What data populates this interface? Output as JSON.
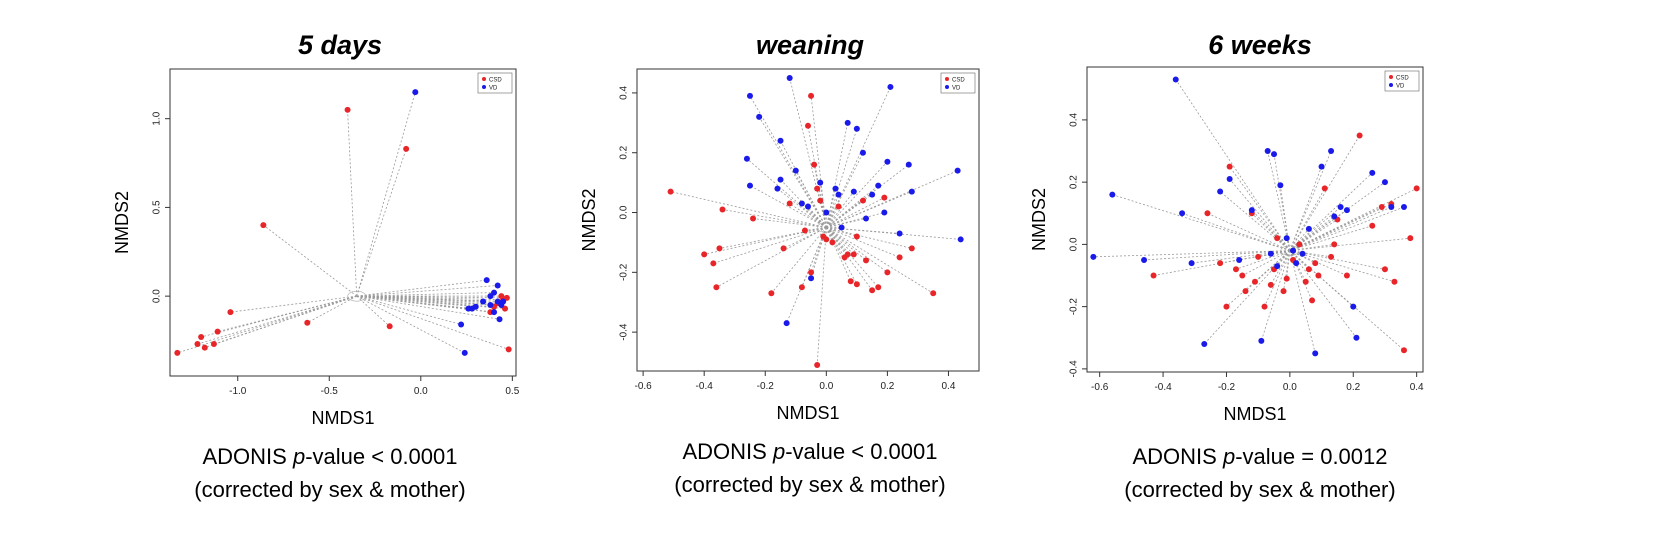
{
  "chart_data": [
    {
      "type": "scatter",
      "title": "5 days",
      "xlabel": "NMDS1",
      "ylabel": "NMDS2",
      "xlim": [
        -1.37,
        0.52
      ],
      "ylim": [
        -0.45,
        1.28
      ],
      "xticks": [
        -1.0,
        -0.5,
        0.0,
        0.5
      ],
      "yticks": [
        0.0,
        0.5,
        1.0
      ],
      "grid": false,
      "legend": {
        "position": "top-right",
        "entries": [
          "CSD",
          "VD"
        ]
      },
      "colors": {
        "CSD": "#e8262a",
        "VD": "#1a1aeb"
      },
      "spider": true,
      "centroid": [
        -0.35,
        0.0
      ],
      "series": [
        {
          "name": "CSD",
          "x": [
            -1.33,
            -1.22,
            -1.2,
            -1.18,
            -1.13,
            -1.11,
            -1.04,
            -0.86,
            -0.62,
            -0.4,
            -0.17,
            -0.08,
            0.38,
            0.4,
            0.42,
            0.45,
            0.47,
            0.44,
            0.46,
            0.48
          ],
          "y": [
            -0.32,
            -0.27,
            -0.23,
            -0.29,
            -0.27,
            -0.2,
            -0.09,
            0.4,
            -0.15,
            1.05,
            -0.17,
            0.83,
            -0.09,
            -0.06,
            -0.04,
            -0.02,
            -0.01,
            0.0,
            -0.07,
            -0.3
          ]
        },
        {
          "name": "VD",
          "x": [
            -0.03,
            0.24,
            0.26,
            0.28,
            0.3,
            0.34,
            0.36,
            0.38,
            0.38,
            0.4,
            0.4,
            0.42,
            0.42,
            0.43,
            0.44,
            0.45,
            0.22
          ],
          "y": [
            1.15,
            -0.32,
            -0.07,
            -0.07,
            -0.06,
            -0.03,
            0.09,
            0.0,
            -0.05,
            0.02,
            -0.09,
            -0.03,
            0.06,
            -0.13,
            -0.05,
            -0.03,
            -0.16
          ]
        }
      ]
    },
    {
      "type": "scatter",
      "title": "weaning",
      "xlabel": "NMDS1",
      "ylabel": "NMDS2",
      "xlim": [
        -0.62,
        0.5
      ],
      "ylim": [
        -0.53,
        0.48
      ],
      "xticks": [
        -0.6,
        -0.4,
        -0.2,
        0.0,
        0.2,
        0.4
      ],
      "yticks": [
        -0.4,
        -0.2,
        0.0,
        0.2,
        0.4
      ],
      "grid": false,
      "legend": {
        "position": "top-right",
        "entries": [
          "CSD",
          "VD"
        ]
      },
      "colors": {
        "CSD": "#e8262a",
        "VD": "#1a1aeb"
      },
      "spider": true,
      "centroid": [
        0.0,
        -0.05
      ],
      "series": [
        {
          "name": "CSD",
          "x": [
            -0.51,
            -0.4,
            -0.37,
            -0.36,
            -0.35,
            -0.34,
            -0.24,
            -0.18,
            -0.14,
            -0.12,
            -0.08,
            -0.06,
            -0.05,
            -0.04,
            -0.03,
            -0.03,
            -0.02,
            -0.01,
            0.0,
            0.02,
            0.04,
            0.06,
            0.07,
            0.08,
            0.09,
            0.1,
            0.1,
            0.12,
            0.15,
            0.17,
            0.19,
            0.2,
            0.24,
            0.28,
            0.35,
            -0.07,
            -0.05,
            0.13
          ],
          "y": [
            0.07,
            -0.14,
            -0.17,
            -0.25,
            -0.12,
            0.01,
            -0.02,
            -0.27,
            -0.12,
            0.03,
            -0.25,
            0.29,
            0.39,
            0.16,
            -0.51,
            0.08,
            0.04,
            -0.08,
            -0.09,
            -0.1,
            0.02,
            -0.15,
            -0.14,
            -0.23,
            -0.14,
            -0.24,
            -0.08,
            0.04,
            -0.26,
            -0.25,
            0.05,
            -0.2,
            -0.15,
            -0.12,
            -0.27,
            -0.06,
            -0.2,
            -0.16
          ]
        },
        {
          "name": "VD",
          "x": [
            -0.26,
            -0.25,
            -0.22,
            -0.15,
            -0.12,
            -0.1,
            -0.08,
            -0.06,
            -0.05,
            -0.02,
            0.0,
            0.03,
            0.04,
            0.07,
            0.09,
            0.1,
            0.13,
            0.15,
            0.17,
            0.19,
            0.2,
            0.21,
            0.24,
            0.27,
            0.28,
            0.43,
            0.44,
            -0.25,
            -0.16,
            -0.15,
            -0.13,
            0.12,
            0.05
          ],
          "y": [
            0.18,
            0.39,
            0.32,
            0.24,
            0.45,
            0.14,
            0.03,
            0.02,
            -0.22,
            0.1,
            0.0,
            0.08,
            0.06,
            0.3,
            0.07,
            0.28,
            -0.02,
            0.06,
            0.09,
            0.0,
            0.17,
            0.42,
            -0.07,
            0.16,
            0.07,
            0.14,
            -0.09,
            0.09,
            0.08,
            0.11,
            -0.37,
            0.2,
            -0.05
          ]
        }
      ]
    },
    {
      "type": "scatter",
      "title": "6 weeks",
      "xlabel": "NMDS1",
      "ylabel": "NMDS2",
      "xlim": [
        -0.64,
        0.42
      ],
      "ylim": [
        -0.41,
        0.57
      ],
      "xticks": [
        -0.6,
        -0.4,
        -0.2,
        0.0,
        0.2,
        0.4
      ],
      "yticks": [
        -0.4,
        -0.2,
        0.0,
        0.2,
        0.4
      ],
      "grid": false,
      "legend": {
        "position": "top-right",
        "entries": [
          "CSD",
          "VD"
        ]
      },
      "colors": {
        "CSD": "#e8262a",
        "VD": "#1a1aeb"
      },
      "spider": true,
      "centroid": [
        0.0,
        -0.02
      ],
      "series": [
        {
          "name": "CSD",
          "x": [
            -0.43,
            -0.26,
            -0.22,
            -0.2,
            -0.19,
            -0.17,
            -0.15,
            -0.14,
            -0.12,
            -0.11,
            -0.1,
            -0.08,
            -0.06,
            -0.05,
            -0.04,
            -0.02,
            -0.01,
            0.01,
            0.03,
            0.05,
            0.06,
            0.07,
            0.08,
            0.09,
            0.11,
            0.13,
            0.14,
            0.15,
            0.18,
            0.22,
            0.26,
            0.29,
            0.3,
            0.32,
            0.33,
            0.36,
            0.38,
            0.4
          ],
          "y": [
            -0.1,
            0.1,
            -0.06,
            -0.2,
            0.25,
            -0.08,
            -0.1,
            -0.15,
            0.1,
            -0.12,
            -0.04,
            -0.2,
            -0.13,
            -0.08,
            0.02,
            -0.15,
            -0.11,
            -0.05,
            0.0,
            -0.12,
            -0.08,
            -0.18,
            -0.06,
            -0.1,
            0.18,
            -0.04,
            0.0,
            0.08,
            -0.1,
            0.35,
            0.06,
            0.12,
            -0.08,
            0.13,
            -0.12,
            -0.34,
            0.02,
            0.18
          ]
        },
        {
          "name": "VD",
          "x": [
            -0.62,
            -0.56,
            -0.46,
            -0.36,
            -0.34,
            -0.31,
            -0.27,
            -0.22,
            -0.19,
            -0.16,
            -0.12,
            -0.09,
            -0.07,
            -0.05,
            -0.04,
            -0.03,
            -0.01,
            0.01,
            0.02,
            0.04,
            0.06,
            0.08,
            0.1,
            0.13,
            0.16,
            0.18,
            0.21,
            0.26,
            0.3,
            0.32,
            0.36,
            0.2,
            -0.06,
            0.14
          ],
          "y": [
            -0.04,
            0.16,
            -0.05,
            0.53,
            0.1,
            -0.06,
            -0.32,
            0.17,
            0.21,
            -0.05,
            0.11,
            -0.31,
            0.3,
            0.29,
            -0.07,
            0.19,
            0.02,
            -0.02,
            -0.06,
            -0.03,
            0.05,
            -0.35,
            0.25,
            0.3,
            0.12,
            0.11,
            -0.3,
            0.23,
            0.2,
            0.12,
            0.12,
            -0.2,
            -0.03,
            0.09
          ]
        }
      ]
    }
  ],
  "captions": [
    {
      "prefix": "ADONIS ",
      "pv": "p",
      "rest": "-value < 0.0001",
      "line2": "(corrected by sex & mother)"
    },
    {
      "prefix": "ADONIS ",
      "pv": "p",
      "rest": "-value < 0.0001",
      "line2": "(corrected by sex & mother)"
    },
    {
      "prefix": "ADONIS ",
      "pv": "p",
      "rest": "-value = 0.0012",
      "line2": "(corrected by sex & mother)"
    }
  ]
}
